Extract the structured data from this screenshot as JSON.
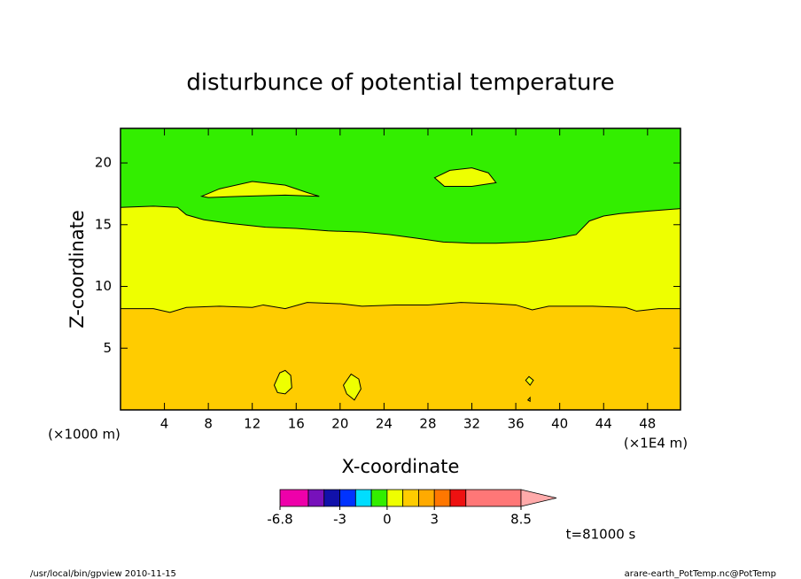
{
  "chart_data": {
    "type": "contour",
    "title": "disturbunce of potential temperature",
    "x_label": "X-coordinate",
    "y_label": "Z-coordinate",
    "y_units": "(×1000 m)",
    "x_units": "(×1E4 m)",
    "time_label": "t=81000 s",
    "xlim": [
      0,
      51
    ],
    "ylim": [
      0,
      22.8
    ],
    "xticks": [
      4,
      8,
      12,
      16,
      20,
      24,
      28,
      32,
      36,
      40,
      44,
      48
    ],
    "yticks": [
      5,
      10,
      15,
      20
    ],
    "background": "#33ee00",
    "contours": [
      {
        "color": "#eeff00",
        "closed": false,
        "x": [
          0,
          3,
          5.2,
          6.0,
          7.6,
          10,
          13.2,
          16,
          18.9,
          22,
          24.5,
          27,
          29.4,
          32,
          34.2,
          37,
          39.1,
          41.5,
          42.7,
          44,
          45.5,
          48,
          51
        ],
        "y": [
          16.4,
          16.5,
          16.4,
          15.8,
          15.4,
          15.1,
          14.8,
          14.7,
          14.5,
          14.4,
          14.2,
          13.9,
          13.6,
          13.5,
          13.5,
          13.6,
          13.8,
          14.2,
          15.3,
          15.7,
          15.9,
          16.1,
          16.3
        ]
      },
      {
        "color": "#ffcc00",
        "closed": false,
        "x": [
          0,
          3,
          4.5,
          6,
          9,
          12,
          13,
          15,
          17,
          20,
          22,
          25,
          28,
          31,
          34,
          36,
          37.5,
          39,
          43,
          46,
          47,
          49,
          51
        ],
        "y": [
          8.2,
          8.2,
          7.9,
          8.3,
          8.4,
          8.3,
          8.5,
          8.2,
          8.7,
          8.6,
          8.4,
          8.5,
          8.5,
          8.7,
          8.6,
          8.5,
          8.1,
          8.4,
          8.4,
          8.3,
          8.0,
          8.2,
          8.2
        ]
      },
      {
        "color": "#eeff00",
        "closed": true,
        "x": [
          7.4,
          9,
          12,
          15,
          17,
          18.1,
          15,
          11,
          8
        ],
        "y": [
          17.3,
          17.9,
          18.5,
          18.2,
          17.6,
          17.3,
          17.4,
          17.3,
          17.2
        ]
      },
      {
        "color": "#eeff00",
        "closed": true,
        "x": [
          28.6,
          30,
          32,
          33.5,
          34.2,
          32,
          29.5
        ],
        "y": [
          18.8,
          19.4,
          19.6,
          19.2,
          18.4,
          18.1,
          18.1
        ]
      },
      {
        "color": "#eeff00",
        "closed": true,
        "x": [
          14.0,
          14.5,
          15.0,
          15.5,
          15.6,
          15.0,
          14.3
        ],
        "y": [
          2.0,
          3.0,
          3.2,
          2.8,
          1.8,
          1.3,
          1.4
        ]
      },
      {
        "color": "#eeff00",
        "closed": true,
        "x": [
          20.3,
          21.0,
          21.7,
          21.9,
          21.3,
          20.6
        ],
        "y": [
          2.0,
          2.9,
          2.5,
          1.7,
          0.8,
          1.3
        ]
      },
      {
        "color": "#eeff00",
        "closed": true,
        "x": [
          36.9,
          37.2,
          37.6,
          37.3
        ],
        "y": [
          2.4,
          2.7,
          2.4,
          2.0
        ]
      },
      {
        "color": "#eeff00",
        "closed": true,
        "x": [
          37.1,
          37.3,
          37.3
        ],
        "y": [
          0.8,
          1.0,
          0.7
        ]
      }
    ],
    "colorbar": {
      "levels": [
        -6.8,
        -5,
        -4,
        -3,
        -2,
        -1,
        0,
        1,
        2,
        3,
        4,
        5,
        8.5
      ],
      "colors": [
        "#ee00aa",
        "#7711bb",
        "#1111aa",
        "#0033ff",
        "#00ddff",
        "#33ee00",
        "#eeff00",
        "#ffcc00",
        "#ffaa00",
        "#ff7700",
        "#ee1111",
        "#ff7777"
      ],
      "extend_color": "#ffaaaa",
      "ticks": [
        -6.8,
        -3,
        0,
        3,
        8.5
      ]
    }
  },
  "footer": {
    "left": "/usr/local/bin/gpview  2010-11-15",
    "right": "arare-earth_PotTemp.nc@PotTemp"
  }
}
